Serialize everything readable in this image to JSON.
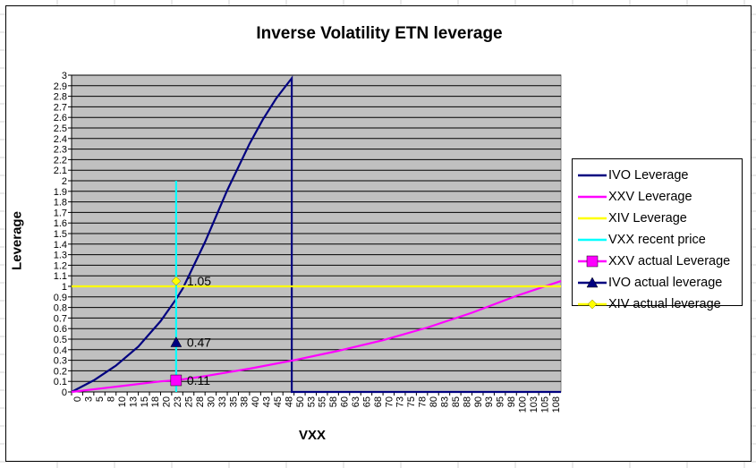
{
  "chart_data": {
    "type": "line",
    "title": "Inverse Volatility ETN leverage",
    "xlabel": "VXX",
    "ylabel": "Leverage",
    "xlim": [
      0,
      110
    ],
    "ylim": [
      0,
      3
    ],
    "grid": true,
    "legend_position": "right",
    "x_tick_labels": [
      "0",
      "3",
      "5",
      "8",
      "10",
      "13",
      "15",
      "18",
      "20",
      "23",
      "25",
      "28",
      "30",
      "33",
      "35",
      "38",
      "40",
      "43",
      "45",
      "48",
      "50",
      "53",
      "55",
      "58",
      "60",
      "63",
      "65",
      "68",
      "70",
      "73",
      "75",
      "78",
      "80",
      "83",
      "85",
      "88",
      "90",
      "93",
      "95",
      "98",
      "100",
      "103",
      "105",
      "108"
    ],
    "y_tick_labels": [
      "0",
      "0.1",
      "0.2",
      "0.3",
      "0.4",
      "0.5",
      "0.6",
      "0.7",
      "0.8",
      "0.9",
      "1",
      "1.1",
      "1.2",
      "1.3",
      "1.4",
      "1.5",
      "1.6",
      "1.7",
      "1.8",
      "1.9",
      "2",
      "2.1",
      "2.2",
      "2.3",
      "2.4",
      "2.5",
      "2.6",
      "2.7",
      "2.8",
      "2.9",
      "3"
    ],
    "series": [
      {
        "name": "IVO Leverage",
        "color": "#000080",
        "x": [
          0,
          5,
          10,
          15,
          20,
          23.5,
          25,
          30,
          35,
          40,
          43,
          46,
          48,
          49.5,
          49.5,
          49.5,
          50,
          110
        ],
        "y": [
          0,
          0.11,
          0.25,
          0.43,
          0.67,
          0.88,
          0.98,
          1.42,
          1.91,
          2.35,
          2.58,
          2.78,
          2.89,
          2.97,
          2.97,
          0,
          0,
          0
        ]
      },
      {
        "name": "XXV Leverage",
        "color": "#ff00ff",
        "x": [
          0,
          10,
          20,
          23.5,
          30,
          40,
          50,
          60,
          70,
          80,
          90,
          100,
          110
        ],
        "y": [
          0,
          0.05,
          0.1,
          0.11,
          0.15,
          0.22,
          0.3,
          0.39,
          0.49,
          0.61,
          0.75,
          0.91,
          1.05
        ]
      },
      {
        "name": "XIV Leverage",
        "color": "#ffff00",
        "x": [
          0,
          110
        ],
        "y": [
          1.0,
          1.0
        ]
      },
      {
        "name": "VXX recent price",
        "color": "#00ffff",
        "x": [
          23.5,
          23.5
        ],
        "y": [
          0,
          2.0
        ]
      },
      {
        "name": "XXV actual Leverage",
        "color": "#ff00ff",
        "marker": "square",
        "x": [
          23.5
        ],
        "y": [
          0.11
        ],
        "label": "0.11"
      },
      {
        "name": "IVO actual leverage",
        "color": "#000080",
        "marker": "triangle",
        "x": [
          23.5
        ],
        "y": [
          0.47
        ],
        "label": "0.47"
      },
      {
        "name": "XIV actual leverage",
        "color": "#ffff00",
        "marker": "diamond",
        "x": [
          23.5
        ],
        "y": [
          1.05
        ],
        "label": "1.05"
      }
    ]
  },
  "colors": {
    "plot_background": "#c0c0c0",
    "gridline": "#000000",
    "sheet_gridline": "#d4d4d4"
  }
}
